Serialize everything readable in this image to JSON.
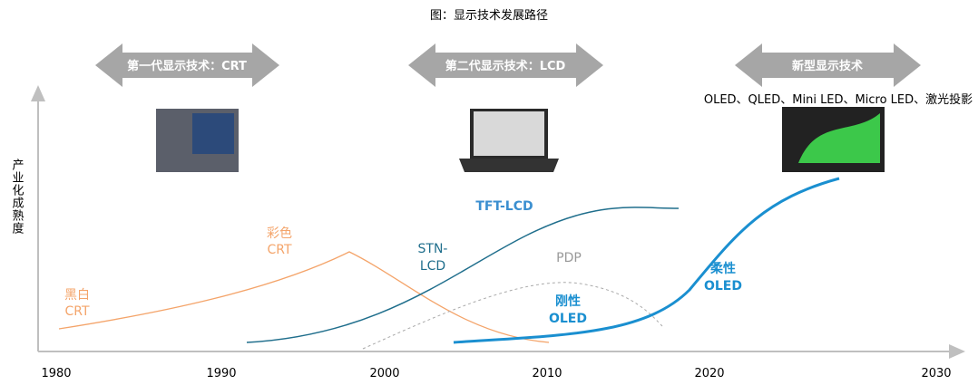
{
  "title": "图：显示技术发展路径",
  "stages": [
    {
      "label": "第一代显示技术：CRT"
    },
    {
      "label": "第二代显示技术：LCD"
    },
    {
      "label": "新型显示技术",
      "note": "OLED、QLED、Mini LED、Micro LED、激光投影"
    }
  ],
  "y_axis_label": "产业化成熟度",
  "x_axis_ticks": [
    "1980",
    "1990",
    "2000",
    "2010",
    "2020",
    "2030"
  ],
  "curves": [
    {
      "label": [
        "黑白",
        "CRT"
      ]
    },
    {
      "label": [
        "彩色",
        "CRT"
      ]
    },
    {
      "label": [
        "STN-",
        "LCD"
      ]
    },
    {
      "label": "TFT-LCD"
    },
    {
      "label": "PDP"
    },
    {
      "label": [
        "刚性",
        "OLED"
      ]
    },
    {
      "label": [
        "柔性",
        "OLED"
      ]
    }
  ]
}
